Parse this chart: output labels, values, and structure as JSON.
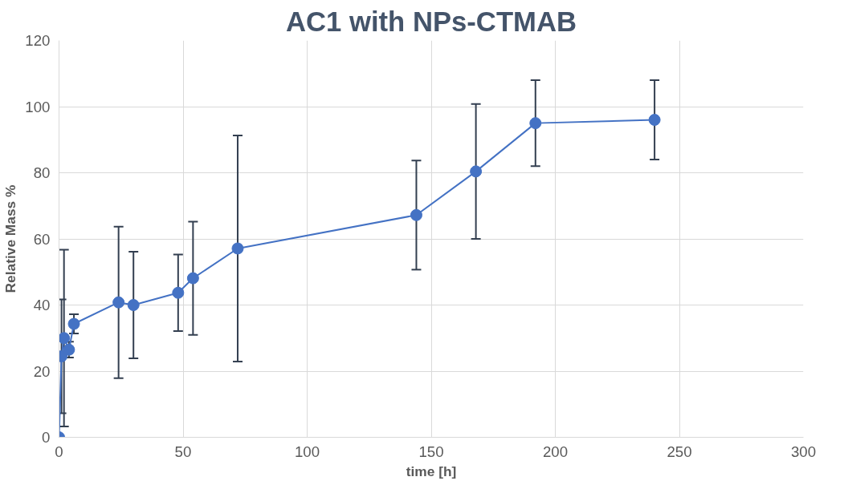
{
  "chart_data": {
    "type": "line",
    "title": "AC1 with NPs-CTMAB",
    "xlabel": "time [h]",
    "ylabel": "Relative Mass %",
    "x": [
      0,
      1,
      2,
      4,
      6,
      24,
      30,
      48,
      54,
      72,
      144,
      168,
      192,
      240
    ],
    "series": [
      {
        "color": "#4472c4",
        "values": [
          0,
          24.5,
          30,
          26.5,
          34.3,
          40.8,
          40,
          43.7,
          48.1,
          57.1,
          67.2,
          80.4,
          95,
          96
        ],
        "errors": [
          null,
          17.2,
          26.7,
          2.4,
          2.9,
          22.9,
          16.1,
          11.6,
          17.1,
          34.2,
          16.5,
          20.4,
          13,
          12
        ]
      }
    ],
    "xlim": [
      0,
      300
    ],
    "xticks": [
      0,
      50,
      100,
      150,
      200,
      250,
      300
    ],
    "ylim": [
      0,
      120
    ],
    "yticks": [
      0,
      20,
      40,
      60,
      80,
      100,
      120
    ],
    "grid": true,
    "marker": "circle",
    "line_style": "solid"
  }
}
